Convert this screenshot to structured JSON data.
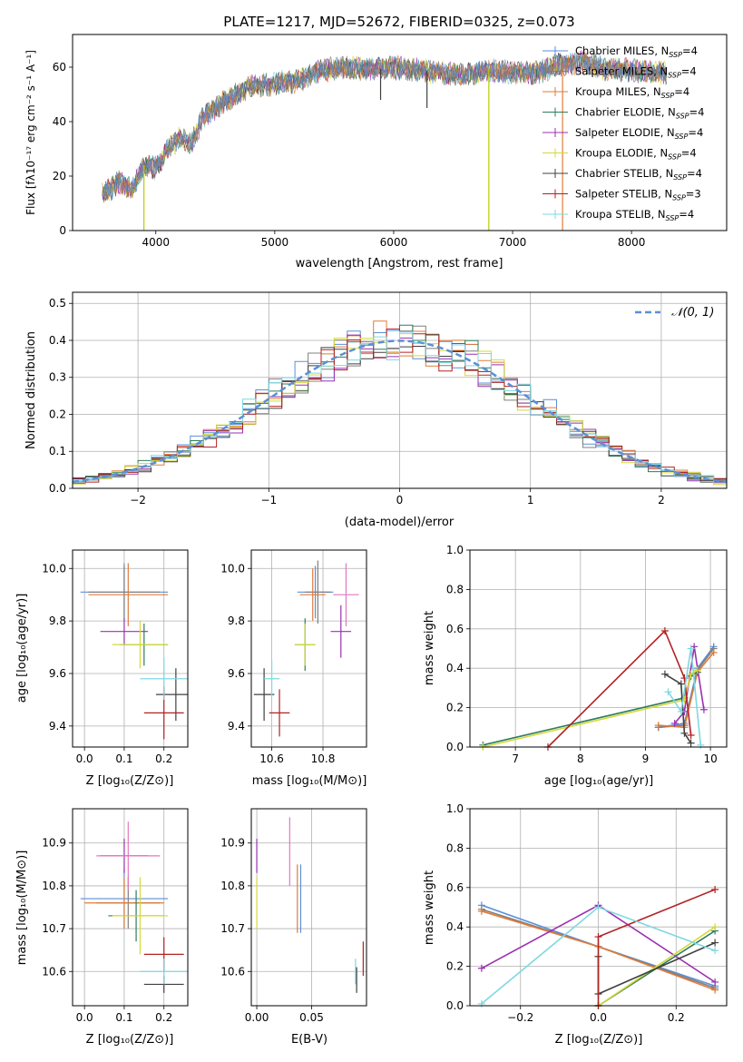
{
  "chart_data": [
    {
      "id": "spectrum",
      "type": "line",
      "title": "PLATE=1217, MJD=52672, FIBERID=0325, z=0.073",
      "xlabel": "wavelength [Angstrom, rest frame]",
      "ylabel": "Flux [fλ10⁻¹⁷ erg cm⁻² s⁻¹ A⁻¹]",
      "xlim": [
        3300,
        8800
      ],
      "ylim": [
        0,
        72
      ],
      "xticks": [
        4000,
        5000,
        6000,
        7000,
        8000
      ],
      "yticks": [
        0,
        20,
        40,
        60
      ],
      "legend_position": "top-right",
      "legend": [
        {
          "name": "Chabrier MILES, N",
          "sub": "SSP",
          "suffix": "=4",
          "color": "#5b8fd6"
        },
        {
          "name": "Salpeter MILES, N",
          "sub": "SSP",
          "suffix": "=4",
          "color": "#7f7f7f"
        },
        {
          "name": "Kroupa MILES, N",
          "sub": "SSP",
          "suffix": "=4",
          "color": "#e07b39"
        },
        {
          "name": "Chabrier ELODIE, N",
          "sub": "SSP",
          "suffix": "=4",
          "color": "#2e7d5b"
        },
        {
          "name": "Salpeter ELODIE, N",
          "sub": "SSP",
          "suffix": "=4",
          "color": "#9b30b0"
        },
        {
          "name": "Kroupa ELODIE, N",
          "sub": "SSP",
          "suffix": "=4",
          "color": "#d4d93a"
        },
        {
          "name": "Chabrier STELIB, N",
          "sub": "SSP",
          "suffix": "=4",
          "color": "#404040"
        },
        {
          "name": "Salpeter STELIB, N",
          "sub": "SSP",
          "suffix": "=3",
          "color": "#b22222"
        },
        {
          "name": "Kroupa STELIB, N",
          "sub": "SSP",
          "suffix": "=4",
          "color": "#7fd8e0"
        }
      ],
      "spectrum_shape": [
        [
          3550,
          13
        ],
        [
          3700,
          18
        ],
        [
          3800,
          15
        ],
        [
          3900,
          24
        ],
        [
          4000,
          23
        ],
        [
          4100,
          30
        ],
        [
          4200,
          34
        ],
        [
          4300,
          32
        ],
        [
          4400,
          42
        ],
        [
          4600,
          48
        ],
        [
          4800,
          53
        ],
        [
          5000,
          54
        ],
        [
          5200,
          55
        ],
        [
          5400,
          59
        ],
        [
          5600,
          60
        ],
        [
          5800,
          59
        ],
        [
          6000,
          60
        ],
        [
          6200,
          59
        ],
        [
          6400,
          58
        ],
        [
          6600,
          57
        ],
        [
          6800,
          59
        ],
        [
          7000,
          58
        ],
        [
          7200,
          58
        ],
        [
          7400,
          61
        ],
        [
          7600,
          62
        ],
        [
          7800,
          59
        ],
        [
          8000,
          59
        ],
        [
          8200,
          58
        ],
        [
          8300,
          58
        ]
      ],
      "dips": [
        [
          3900,
          0,
          "#b8cc00"
        ],
        [
          6800,
          0,
          "#b8cc00"
        ],
        [
          7420,
          0,
          "#e07b39"
        ],
        [
          5890,
          48,
          "#404040"
        ],
        [
          6280,
          45,
          "#404040"
        ]
      ]
    },
    {
      "id": "residuals",
      "type": "histogram",
      "xlabel": "(data-model)/error",
      "ylabel": "Normed distribution",
      "xlim": [
        -2.5,
        2.5
      ],
      "ylim": [
        0,
        0.53
      ],
      "xticks": [
        -2,
        -1,
        0,
        1,
        2
      ],
      "xtick_labels": [
        "−2",
        "−1",
        "0",
        "1",
        "2"
      ],
      "yticks": [
        0.0,
        0.1,
        0.2,
        0.3,
        0.4,
        0.5
      ],
      "ytick_labels": [
        "0.0",
        "0.1",
        "0.2",
        "0.3",
        "0.4",
        "0.5"
      ],
      "legend_position": "top-right",
      "legend": [
        {
          "name": "𝒩(0, 1)",
          "color": "#5b8fd6",
          "style": "dashed"
        }
      ],
      "bin_width": 0.1,
      "colors": [
        "#5b8fd6",
        "#7f7f7f",
        "#e07b39",
        "#2e7d5b",
        "#9b30b0",
        "#d4d93a",
        "#404040",
        "#b22222",
        "#7fd8e0"
      ]
    },
    {
      "id": "age-vs-Z",
      "type": "errorbar",
      "xlabel": "Z [log₁₀(Z/Z⊙)]",
      "ylabel": "age  [log₁₀(age/yr)]",
      "xlim": [
        -0.03,
        0.26
      ],
      "ylim": [
        9.32,
        10.07
      ],
      "xticks": [
        0.0,
        0.1,
        0.2
      ],
      "xtick_labels": [
        "0.0",
        "0.1",
        "0.2"
      ],
      "yticks": [
        9.4,
        9.6,
        9.8,
        10.0
      ],
      "ytick_labels": [
        "9.4",
        "9.6",
        "9.8",
        "10.0"
      ],
      "points": [
        {
          "x": 0.1,
          "y": 9.91,
          "xerr": 0.11,
          "yerr": 0.11,
          "color": "#5b8fd6"
        },
        {
          "x": 0.1,
          "y": 9.91,
          "xerr": 0.09,
          "yerr": 0.1,
          "color": "#7f7f7f"
        },
        {
          "x": 0.11,
          "y": 9.9,
          "xerr": 0.1,
          "yerr": 0.12,
          "color": "#e07b39"
        },
        {
          "x": 0.15,
          "y": 9.71,
          "xerr": 0.06,
          "yerr": 0.08,
          "color": "#2e7d5b"
        },
        {
          "x": 0.1,
          "y": 9.76,
          "xerr": 0.06,
          "yerr": 0.05,
          "color": "#9b30b0"
        },
        {
          "x": 0.14,
          "y": 9.71,
          "xerr": 0.07,
          "yerr": 0.09,
          "color": "#d4d93a"
        },
        {
          "x": 0.23,
          "y": 9.52,
          "xerr": 0.05,
          "yerr": 0.1,
          "color": "#404040"
        },
        {
          "x": 0.2,
          "y": 9.45,
          "xerr": 0.05,
          "yerr": 0.1,
          "color": "#b22222"
        },
        {
          "x": 0.2,
          "y": 9.58,
          "xerr": 0.06,
          "yerr": 0.08,
          "color": "#7fd8e0"
        }
      ]
    },
    {
      "id": "age-vs-mass",
      "type": "errorbar",
      "xlabel": "mass [log₁₀(M/M⊙)]",
      "ylabel": "",
      "xlim": [
        10.52,
        10.97
      ],
      "ylim": [
        9.32,
        10.07
      ],
      "xticks": [
        10.6,
        10.8
      ],
      "xtick_labels": [
        "10.6",
        "10.8"
      ],
      "yticks": [
        9.4,
        9.6,
        9.8,
        10.0
      ],
      "ytick_labels": [
        "9.4",
        "9.6",
        "9.8",
        "10.0"
      ],
      "points": [
        {
          "x": 10.77,
          "y": 9.91,
          "xerr": 0.07,
          "yerr": 0.1,
          "color": "#5b8fd6"
        },
        {
          "x": 10.78,
          "y": 9.91,
          "xerr": 0.05,
          "yerr": 0.12,
          "color": "#7f7f7f"
        },
        {
          "x": 10.76,
          "y": 9.9,
          "xerr": 0.05,
          "yerr": 0.1,
          "color": "#e07b39"
        },
        {
          "x": 10.73,
          "y": 9.71,
          "xerr": 0.04,
          "yerr": 0.1,
          "color": "#2e7d5b"
        },
        {
          "x": 10.87,
          "y": 9.76,
          "xerr": 0.04,
          "yerr": 0.1,
          "color": "#9b30b0"
        },
        {
          "x": 10.73,
          "y": 9.71,
          "xerr": 0.04,
          "yerr": 0.08,
          "color": "#d4d93a"
        },
        {
          "x": 10.57,
          "y": 9.52,
          "xerr": 0.04,
          "yerr": 0.1,
          "color": "#404040"
        },
        {
          "x": 10.63,
          "y": 9.45,
          "xerr": 0.04,
          "yerr": 0.09,
          "color": "#b22222"
        },
        {
          "x": 10.6,
          "y": 9.58,
          "xerr": 0.03,
          "yerr": 0.07,
          "color": "#7fd8e0"
        },
        {
          "x": 10.89,
          "y": 9.9,
          "xerr": 0.05,
          "yerr": 0.12,
          "color": "#e377c2"
        }
      ]
    },
    {
      "id": "massweight-vs-age",
      "type": "line",
      "xlabel": "age  [log₁₀(age/yr)]",
      "ylabel": "mass weight",
      "xlim": [
        6.3,
        10.25
      ],
      "ylim": [
        0,
        1
      ],
      "xticks": [
        7,
        8,
        9,
        10
      ],
      "xtick_labels": [
        "7",
        "8",
        "9",
        "10"
      ],
      "yticks": [
        0.0,
        0.2,
        0.4,
        0.6,
        0.8,
        1.0
      ],
      "ytick_labels": [
        "0.0",
        "0.2",
        "0.4",
        "0.6",
        "0.8",
        "1.0"
      ],
      "series": [
        {
          "color": "#5b8fd6",
          "points": [
            [
              9.2,
              0.1
            ],
            [
              9.6,
              0.12
            ],
            [
              9.8,
              0.4
            ],
            [
              10.05,
              0.51
            ]
          ]
        },
        {
          "color": "#7f7f7f",
          "points": [
            [
              9.2,
              0.1
            ],
            [
              9.6,
              0.11
            ],
            [
              9.8,
              0.39
            ],
            [
              10.05,
              0.5
            ]
          ]
        },
        {
          "color": "#e07b39",
          "points": [
            [
              9.2,
              0.11
            ],
            [
              9.6,
              0.1
            ],
            [
              9.8,
              0.38
            ],
            [
              10.05,
              0.48
            ]
          ]
        },
        {
          "color": "#2e7d5b",
          "points": [
            [
              6.5,
              0.01
            ],
            [
              9.6,
              0.25
            ],
            [
              9.7,
              0.36
            ],
            [
              9.8,
              0.38
            ]
          ]
        },
        {
          "color": "#9b30b0",
          "points": [
            [
              9.45,
              0.12
            ],
            [
              9.6,
              0.18
            ],
            [
              9.75,
              0.51
            ],
            [
              9.9,
              0.19
            ]
          ]
        },
        {
          "color": "#d4d93a",
          "points": [
            [
              6.5,
              0.0
            ],
            [
              9.6,
              0.24
            ],
            [
              9.7,
              0.37
            ],
            [
              9.8,
              0.39
            ]
          ]
        },
        {
          "color": "#404040",
          "points": [
            [
              9.3,
              0.37
            ],
            [
              9.55,
              0.32
            ],
            [
              9.6,
              0.07
            ],
            [
              9.7,
              0.02
            ]
          ]
        },
        {
          "color": "#b22222",
          "points": [
            [
              7.5,
              0.0
            ],
            [
              9.3,
              0.59
            ],
            [
              9.6,
              0.35
            ],
            [
              9.7,
              0.06
            ]
          ]
        },
        {
          "color": "#7fd8e0",
          "points": [
            [
              9.35,
              0.28
            ],
            [
              9.55,
              0.18
            ],
            [
              9.7,
              0.5
            ],
            [
              9.85,
              0.01
            ]
          ]
        }
      ]
    },
    {
      "id": "mass-vs-Z",
      "type": "errorbar",
      "xlabel": "Z [log₁₀(Z/Z⊙)]",
      "ylabel": "mass [log₁₀(M/M⊙)]",
      "xlim": [
        -0.03,
        0.26
      ],
      "ylim": [
        10.52,
        10.98
      ],
      "xticks": [
        0.0,
        0.1,
        0.2
      ],
      "xtick_labels": [
        "0.0",
        "0.1",
        "0.2"
      ],
      "yticks": [
        10.6,
        10.7,
        10.8,
        10.9
      ],
      "ytick_labels": [
        "10.6",
        "10.7",
        "10.8",
        "10.9"
      ],
      "points": [
        {
          "x": 0.1,
          "y": 10.77,
          "xerr": 0.11,
          "yerr": 0.07,
          "color": "#5b8fd6"
        },
        {
          "x": 0.11,
          "y": 10.76,
          "xerr": 0.08,
          "yerr": 0.06,
          "color": "#7f7f7f"
        },
        {
          "x": 0.1,
          "y": 10.76,
          "xerr": 0.1,
          "yerr": 0.06,
          "color": "#e07b39"
        },
        {
          "x": 0.13,
          "y": 10.73,
          "xerr": 0.07,
          "yerr": 0.06,
          "color": "#2e7d5b"
        },
        {
          "x": 0.1,
          "y": 10.87,
          "xerr": 0.06,
          "yerr": 0.04,
          "color": "#9b30b0"
        },
        {
          "x": 0.14,
          "y": 10.73,
          "xerr": 0.07,
          "yerr": 0.09,
          "color": "#d4d93a"
        },
        {
          "x": 0.2,
          "y": 10.57,
          "xerr": 0.05,
          "yerr": 0.02,
          "color": "#404040"
        },
        {
          "x": 0.2,
          "y": 10.64,
          "xerr": 0.05,
          "yerr": 0.04,
          "color": "#b22222"
        },
        {
          "x": 0.2,
          "y": 10.6,
          "xerr": 0.06,
          "yerr": 0.03,
          "color": "#7fd8e0"
        },
        {
          "x": 0.11,
          "y": 10.87,
          "xerr": 0.08,
          "yerr": 0.08,
          "color": "#e377c2"
        }
      ]
    },
    {
      "id": "mass-vs-EBV",
      "type": "errorbar",
      "xlabel": "E(B-V)",
      "ylabel": "",
      "xlim": [
        -0.005,
        0.1
      ],
      "ylim": [
        10.52,
        10.98
      ],
      "xticks": [
        0.0,
        0.05
      ],
      "xtick_labels": [
        "0.00",
        "0.05"
      ],
      "yticks": [
        10.6,
        10.7,
        10.8,
        10.9
      ],
      "ytick_labels": [
        "10.6",
        "10.7",
        "10.8",
        "10.9"
      ],
      "points": [
        {
          "x": 0.0,
          "y": 10.87,
          "xerr": 0,
          "yerr": 0.04,
          "color": "#9b30b0"
        },
        {
          "x": 0.0,
          "y": 10.76,
          "xerr": 0,
          "yerr": 0.06,
          "color": "#d4d93a"
        },
        {
          "x": 0.03,
          "y": 10.88,
          "xerr": 0,
          "yerr": 0.08,
          "color": "#e377c2"
        },
        {
          "x": 0.04,
          "y": 10.77,
          "xerr": 0,
          "yerr": 0.08,
          "color": "#5b8fd6"
        },
        {
          "x": 0.037,
          "y": 10.77,
          "xerr": 0,
          "yerr": 0.08,
          "color": "#e07b39"
        },
        {
          "x": 0.09,
          "y": 10.6,
          "xerr": 0,
          "yerr": 0.03,
          "color": "#7fd8e0"
        },
        {
          "x": 0.091,
          "y": 10.58,
          "xerr": 0,
          "yerr": 0.03,
          "color": "#404040"
        },
        {
          "x": 0.097,
          "y": 10.63,
          "xerr": 0,
          "yerr": 0.04,
          "color": "#b22222"
        }
      ]
    },
    {
      "id": "massweight-vs-Z",
      "type": "line",
      "xlabel": "Z [log₁₀(Z/Z⊙)]",
      "ylabel": "mass weight",
      "xlim": [
        -0.33,
        0.33
      ],
      "ylim": [
        0,
        1
      ],
      "xticks": [
        -0.2,
        0.0,
        0.2
      ],
      "xtick_labels": [
        "−0.2",
        "0.0",
        "0.2"
      ],
      "yticks": [
        0.0,
        0.2,
        0.4,
        0.6,
        0.8,
        1.0
      ],
      "ytick_labels": [
        "0.0",
        "0.2",
        "0.4",
        "0.6",
        "0.8",
        "1.0"
      ],
      "series": [
        {
          "color": "#5b8fd6",
          "points": [
            [
              -0.3,
              0.51
            ],
            [
              0.0,
              0.3
            ],
            [
              0.3,
              0.1
            ]
          ]
        },
        {
          "color": "#7f7f7f",
          "points": [
            [
              -0.3,
              0.49
            ],
            [
              0.0,
              0.3
            ],
            [
              0.3,
              0.09
            ]
          ]
        },
        {
          "color": "#e07b39",
          "points": [
            [
              -0.3,
              0.48
            ],
            [
              0.0,
              0.3
            ],
            [
              0.3,
              0.08
            ]
          ]
        },
        {
          "color": "#2e7d5b",
          "points": [
            [
              0.0,
              0.0
            ],
            [
              0.0,
              0.0
            ],
            [
              0.3,
              0.38
            ]
          ]
        },
        {
          "color": "#9b30b0",
          "points": [
            [
              -0.3,
              0.19
            ],
            [
              0.0,
              0.51
            ],
            [
              0.3,
              0.12
            ]
          ]
        },
        {
          "color": "#d4d93a",
          "points": [
            [
              0.0,
              0.0
            ],
            [
              0.0,
              0.0
            ],
            [
              0.3,
              0.4
            ]
          ]
        },
        {
          "color": "#404040",
          "points": [
            [
              0.0,
              0.25
            ],
            [
              0.0,
              0.06
            ],
            [
              0.3,
              0.32
            ]
          ]
        },
        {
          "color": "#b22222",
          "points": [
            [
              0.0,
              0.0
            ],
            [
              0.0,
              0.35
            ],
            [
              0.3,
              0.59
            ]
          ]
        },
        {
          "color": "#7fd8e0",
          "points": [
            [
              -0.3,
              0.01
            ],
            [
              0.0,
              0.5
            ],
            [
              0.3,
              0.28
            ]
          ]
        }
      ]
    }
  ]
}
